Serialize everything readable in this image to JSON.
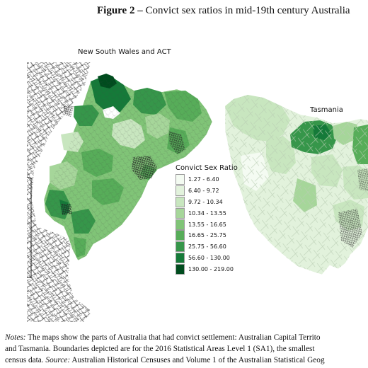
{
  "figure": {
    "label": "Figure 2 –",
    "title": "Convict sex ratios in mid-19th century Australia"
  },
  "maps": {
    "nsw_label": "New South Wales and ACT",
    "tas_label": "Tasmania"
  },
  "legend": {
    "title": "Convict Sex Ratio",
    "items": [
      {
        "label": "1.27 - 6.40",
        "color": "#f4fbf2"
      },
      {
        "label": "6.40 - 9.72",
        "color": "#e2f2dc"
      },
      {
        "label": "9.72 - 10.34",
        "color": "#c8e6bf"
      },
      {
        "label": "10.34 - 13.55",
        "color": "#a6d69a"
      },
      {
        "label": "13.55 - 16.65",
        "color": "#80c477"
      },
      {
        "label": "16.65 - 25.75",
        "color": "#57ad59"
      },
      {
        "label": "25.75 - 56.60",
        "color": "#36964a"
      },
      {
        "label": "56.60 - 130.00",
        "color": "#157a39"
      },
      {
        "label": "130.00 - 219.00",
        "color": "#004c1e"
      }
    ]
  },
  "notes": {
    "notes_label": "Notes:",
    "line1": "The maps show the parts of Australia that had convict settlement: Australian Capital Territo",
    "line2": "and Tasmania.  Boundaries depicted are for the 2016 Statistical Areas Level 1 (SA1), the smallest",
    "line3_a": "census data.",
    "source_label": "Source:",
    "line3_b": "Australian Historical Censuses and Volume 1 of the Australian Statistical Geog"
  }
}
